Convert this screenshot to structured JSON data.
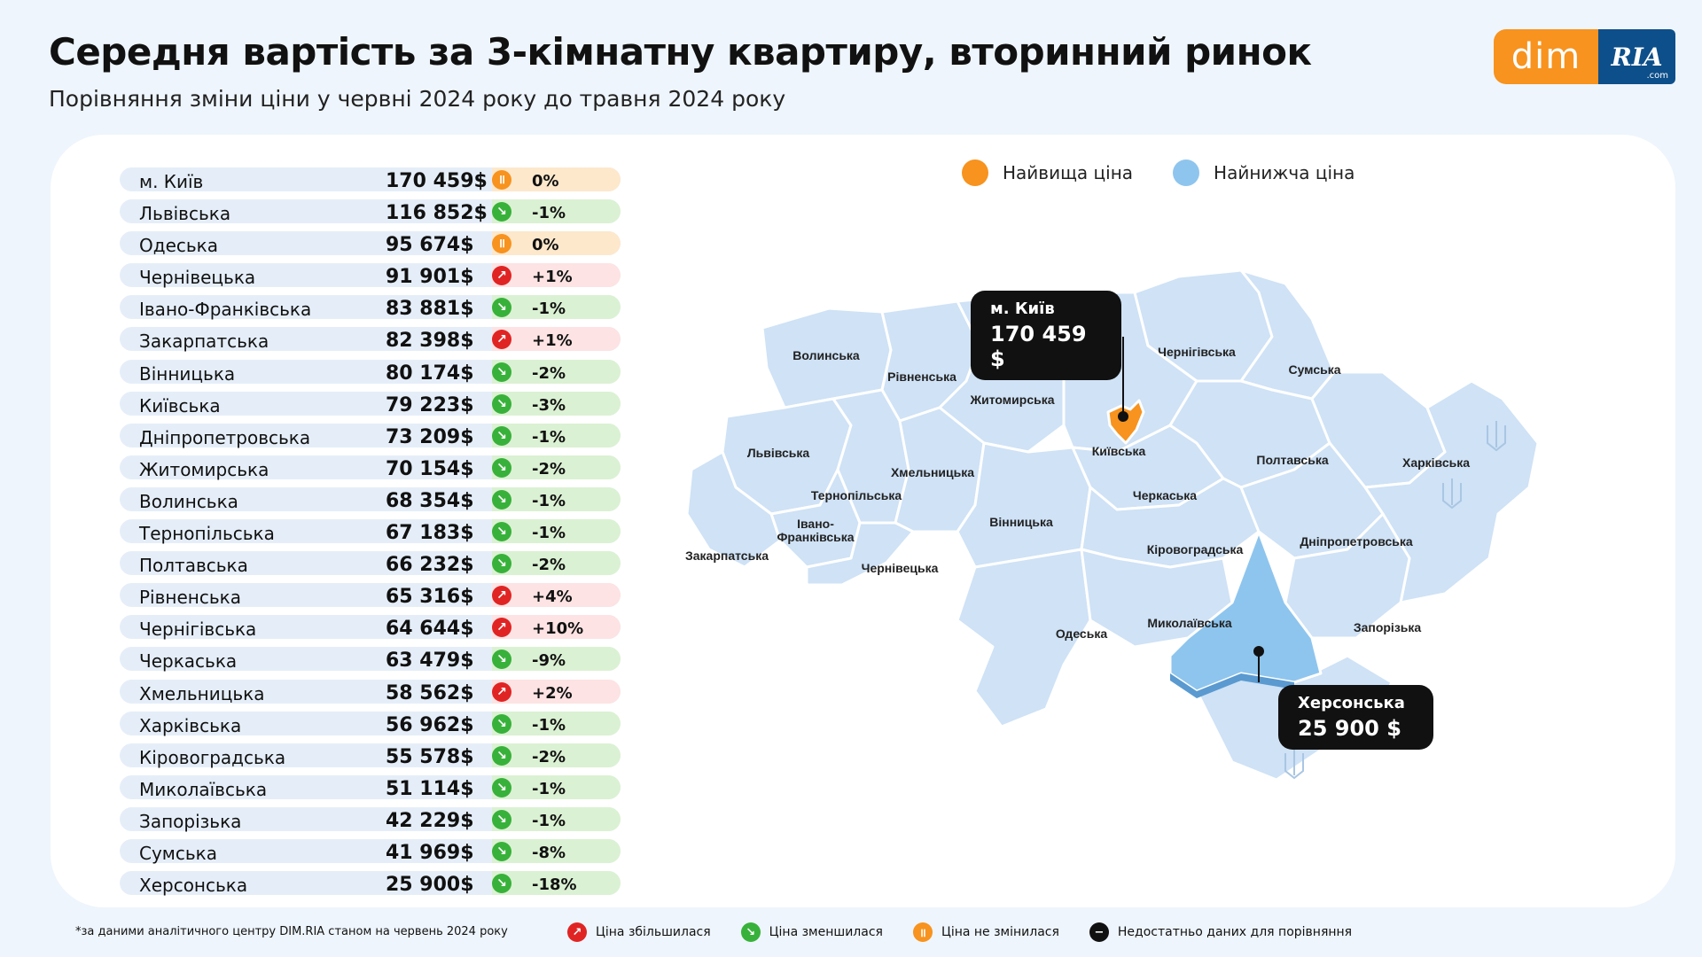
{
  "title": "Середня вартість за 3-кімнатну квартиру, вторинний ринок",
  "subtitle": "Порівняння зміни ціни у червні 2024 року до травня 2024 року",
  "logo": {
    "dim": "dim",
    "ria": "RIA",
    "com": ".com"
  },
  "colors": {
    "highest": "#f7931e",
    "lowest": "#8ec5ee",
    "region": "#cfe2f6",
    "up": "#e02424",
    "down": "#38b13a",
    "same": "#f7931e"
  },
  "rows": [
    {
      "name": "м. Київ",
      "price": "170 459$",
      "change": "0%",
      "trend": "same"
    },
    {
      "name": "Львівська",
      "price": "116 852$",
      "change": "-1%",
      "trend": "down"
    },
    {
      "name": "Одеська",
      "price": "95 674$",
      "change": "0%",
      "trend": "same"
    },
    {
      "name": "Чернівецька",
      "price": "91 901$",
      "change": "+1%",
      "trend": "up"
    },
    {
      "name": "Івано-Франківська",
      "price": "83 881$",
      "change": "-1%",
      "trend": "down"
    },
    {
      "name": "Закарпатська",
      "price": "82 398$",
      "change": "+1%",
      "trend": "up"
    },
    {
      "name": "Вінницька",
      "price": "80 174$",
      "change": "-2%",
      "trend": "down"
    },
    {
      "name": "Київська",
      "price": "79 223$",
      "change": "-3%",
      "trend": "down"
    },
    {
      "name": "Дніпропетровська",
      "price": "73 209$",
      "change": "-1%",
      "trend": "down"
    },
    {
      "name": "Житомирська",
      "price": "70 154$",
      "change": "-2%",
      "trend": "down"
    },
    {
      "name": "Волинська",
      "price": "68 354$",
      "change": "-1%",
      "trend": "down"
    },
    {
      "name": "Тернопільська",
      "price": "67 183$",
      "change": "-1%",
      "trend": "down"
    },
    {
      "name": "Полтавська",
      "price": "66 232$",
      "change": "-2%",
      "trend": "down"
    },
    {
      "name": "Рівненська",
      "price": "65 316$",
      "change": "+4%",
      "trend": "up"
    },
    {
      "name": "Чернігівська",
      "price": "64 644$",
      "change": "+10%",
      "trend": "up"
    },
    {
      "name": "Черкаська",
      "price": "63 479$",
      "change": "-9%",
      "trend": "down"
    },
    {
      "name": "Хмельницька",
      "price": "58 562$",
      "change": "+2%",
      "trend": "up"
    },
    {
      "name": "Харківська",
      "price": "56 962$",
      "change": "-1%",
      "trend": "down"
    },
    {
      "name": "Кіровоградська",
      "price": "55 578$",
      "change": "-2%",
      "trend": "down"
    },
    {
      "name": "Миколаївська",
      "price": "51 114$",
      "change": "-1%",
      "trend": "down"
    },
    {
      "name": "Запорізька",
      "price": "42 229$",
      "change": "-1%",
      "trend": "down"
    },
    {
      "name": "Сумська",
      "price": "41 969$",
      "change": "-8%",
      "trend": "down"
    },
    {
      "name": "Херсонська",
      "price": "25 900$",
      "change": "-18%",
      "trend": "down"
    }
  ],
  "legend_top": {
    "highest": "Найвища ціна",
    "lowest": "Найнижча ціна"
  },
  "map_labels": {
    "volynska": "Волинська",
    "rivnenska": "Рівненська",
    "zhytomyrska": "Житомирська",
    "chernihivska": "Чернігівська",
    "sumska": "Сумська",
    "lvivska": "Львівська",
    "kyivska": "Київська",
    "poltavska": "Полтавська",
    "kharkivska": "Харківська",
    "khmelnytska": "Хмельницька",
    "ternopilska": "Тернопільська",
    "cherkaska": "Черкаська",
    "ivano1": "Івано-",
    "ivano2": "Франківська",
    "vinnytska": "Вінницька",
    "zakarpatska": "Закарпатська",
    "chernivetska": "Чернівецька",
    "kirovohradska": "Кіровоградська",
    "dnipropetrovska": "Дніпропетровська",
    "odeska": "Одеська",
    "mykolaivska": "Миколаївська",
    "zaporizka": "Запорізька"
  },
  "callout_high": {
    "name": "м. Київ",
    "price": "170 459 $"
  },
  "callout_low": {
    "name": "Херсонська",
    "price": "25 900 $"
  },
  "footnote": "*за даними аналітичного центру DIM.RIA станом на червень 2024 року",
  "legend_bottom": {
    "up": "Ціна збільшилася",
    "down": "Ціна зменшилася",
    "same": "Ціна не змінилася",
    "none": "Недостатньо даних для порівняння"
  }
}
